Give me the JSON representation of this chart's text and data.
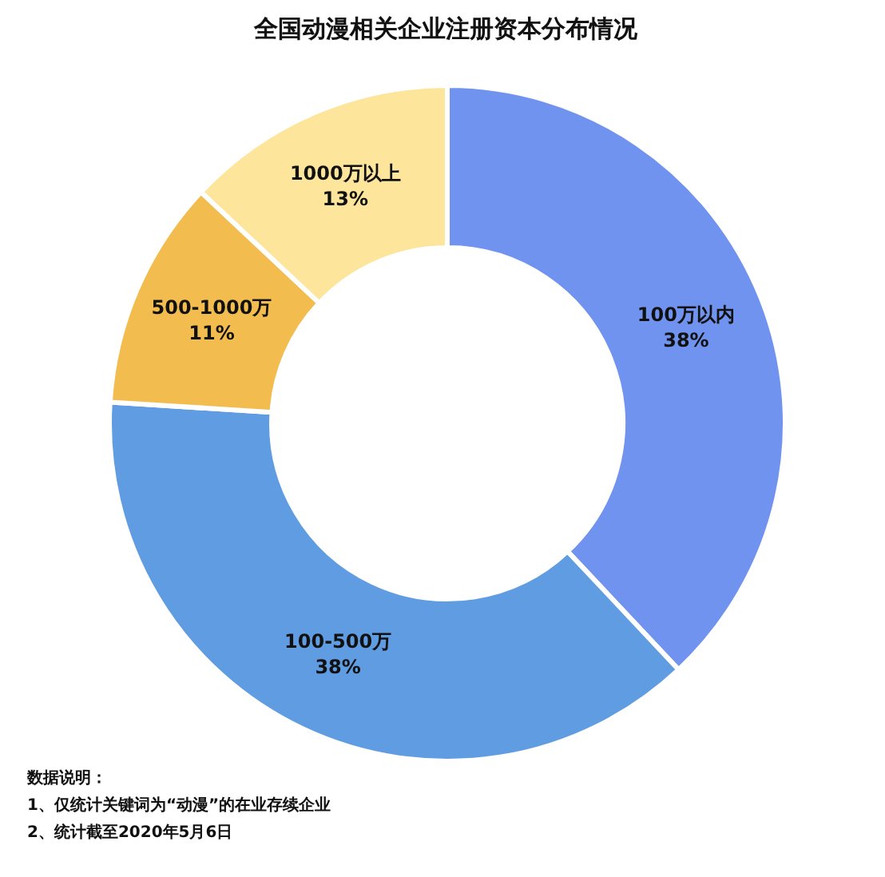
{
  "chart_data": {
    "type": "donut",
    "title": "全国动漫相关企业注册资本分布情况",
    "categories": [
      "100万以内",
      "100-500万",
      "500-1000万",
      "1000万以上"
    ],
    "values": [
      38,
      38,
      11,
      13
    ],
    "value_labels": [
      "38%",
      "38%",
      "11%",
      "13%"
    ],
    "colors": [
      "#7093ef",
      "#5f9ce2",
      "#f2bd4e",
      "#fde59c"
    ],
    "annotations": [
      "数据说明：",
      "1、仅统计关键词为“动漫”的在业存续企业",
      "2、统计截至2020年5月6日"
    ]
  }
}
